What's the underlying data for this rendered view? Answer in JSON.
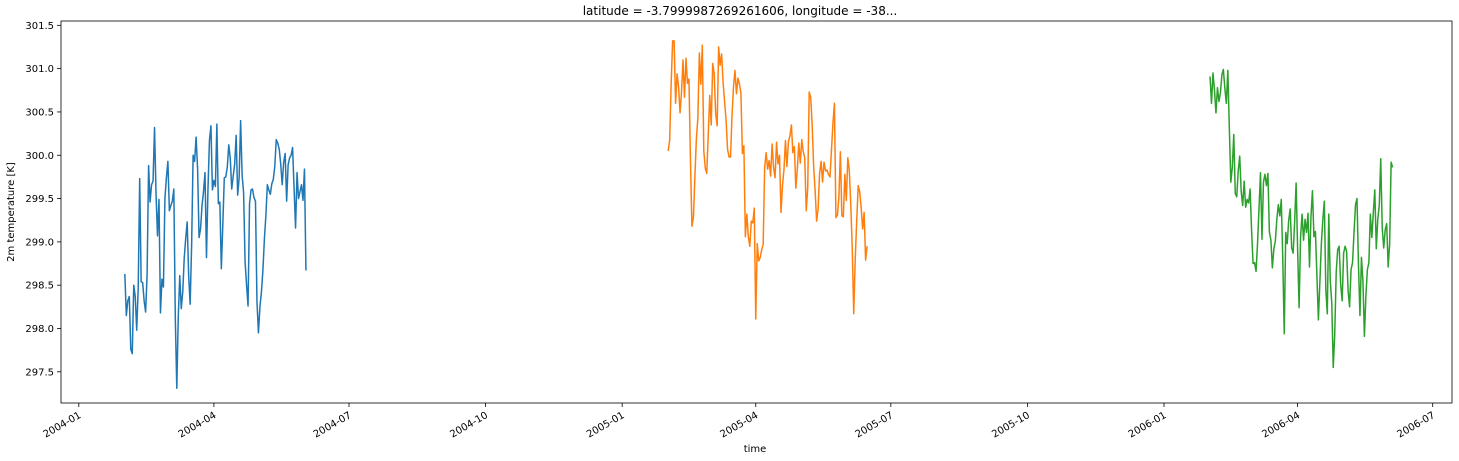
{
  "chart_data": {
    "type": "line",
    "title": "latitude = -3.7999987269261606, longitude = -38...",
    "xlabel": "time",
    "ylabel": "2m temperature [K]",
    "xlim": [
      "2003-12-20",
      "2006-07-14"
    ],
    "ylim": [
      297.14,
      301.55
    ],
    "x_ticks": [
      "2004-01",
      "2004-04",
      "2004-07",
      "2004-10",
      "2005-01",
      "2005-04",
      "2005-07",
      "2005-10",
      "2006-01",
      "2006-04",
      "2006-07"
    ],
    "y_ticks": [
      297.5,
      298.0,
      298.5,
      299.0,
      299.5,
      300.0,
      300.5,
      301.0,
      301.5
    ],
    "grid": false,
    "series": [
      {
        "color": "#1f77b4",
        "start": "2004-02-01",
        "values": [
          298.63,
          298.15,
          298.32,
          298.37,
          297.76,
          297.71,
          298.5,
          298.37,
          297.98,
          298.46,
          299.73,
          298.54,
          298.53,
          298.32,
          298.19,
          298.62,
          299.88,
          299.46,
          299.66,
          299.7,
          300.32,
          299.56,
          299.07,
          299.49,
          298.18,
          298.57,
          298.48,
          299.5,
          299.74,
          299.93,
          299.36,
          299.42,
          299.47,
          299.61,
          298.12,
          297.31,
          298.14,
          298.61,
          298.23,
          298.42,
          298.81,
          299.04,
          299.23,
          298.61,
          298.28,
          298.97,
          300.0,
          299.93,
          300.21,
          299.85,
          299.05,
          299.15,
          299.42,
          299.58,
          299.8,
          298.82,
          299.61,
          300.17,
          300.34,
          299.6,
          299.71,
          299.64,
          300.36,
          299.44,
          299.46,
          298.69,
          299.2,
          299.74,
          299.75,
          299.86,
          300.12,
          299.97,
          299.61,
          299.76,
          299.9,
          300.23,
          299.54,
          299.74,
          300.4,
          299.77,
          299.57,
          298.77,
          298.5,
          298.26,
          299.44,
          299.6,
          299.61,
          299.51,
          299.47,
          298.31,
          297.95,
          298.25,
          298.42,
          298.67,
          299.03,
          299.3,
          299.66,
          299.6,
          299.55,
          299.67,
          299.72,
          299.87,
          300.18,
          300.14,
          300.07,
          299.9,
          299.66,
          299.92,
          300.02,
          299.47,
          299.89,
          299.97,
          300.0,
          300.09,
          299.62,
          299.16,
          299.8,
          299.5,
          299.58,
          299.66,
          299.48,
          299.84,
          298.67
        ]
      },
      {
        "color": "#ff7f0e",
        "start": "2005-02-01",
        "values": [
          300.05,
          300.17,
          300.82,
          301.32,
          301.32,
          300.6,
          300.94,
          300.79,
          300.49,
          300.73,
          301.1,
          300.67,
          301.12,
          300.83,
          300.88,
          299.95,
          299.18,
          299.28,
          299.75,
          300.19,
          300.43,
          301.18,
          300.82,
          301.27,
          300.05,
          299.85,
          299.79,
          300.24,
          300.69,
          300.35,
          301.06,
          300.94,
          300.48,
          300.34,
          301.25,
          301.04,
          301.17,
          300.84,
          300.62,
          300.41,
          300.07,
          299.98,
          299.98,
          300.46,
          300.79,
          300.98,
          300.71,
          300.89,
          300.82,
          300.72,
          300.02,
          300.11,
          299.06,
          299.32,
          299.06,
          298.95,
          299.24,
          299.22,
          299.39,
          298.11,
          298.98,
          298.78,
          298.82,
          298.91,
          298.97,
          299.86,
          300.03,
          299.84,
          299.94,
          299.76,
          300.13,
          299.86,
          299.74,
          300.15,
          299.9,
          300.0,
          299.34,
          299.65,
          299.83,
          300.17,
          299.87,
          300.16,
          300.22,
          300.35,
          300.03,
          300.1,
          299.62,
          299.84,
          300.14,
          299.91,
          300.18,
          300.04,
          299.97,
          299.36,
          299.62,
          300.73,
          300.67,
          300.35,
          299.87,
          299.59,
          299.24,
          299.38,
          299.79,
          299.93,
          299.69,
          299.92,
          299.82,
          299.83,
          299.78,
          299.75,
          300.06,
          300.37,
          300.6,
          299.28,
          299.31,
          299.52,
          300.04,
          299.3,
          299.29,
          299.78,
          299.48,
          299.97,
          299.83,
          299.43,
          298.93,
          298.17,
          298.8,
          299.24,
          299.65,
          299.58,
          299.4,
          299.15,
          299.34,
          298.79,
          298.95
        ]
      },
      {
        "color": "#2ca02c",
        "start": "2006-02-01",
        "values": [
          300.91,
          300.6,
          300.95,
          300.75,
          300.49,
          300.78,
          300.62,
          300.72,
          300.93,
          300.99,
          300.77,
          300.6,
          300.98,
          300.32,
          299.69,
          299.86,
          300.24,
          299.56,
          299.52,
          299.82,
          299.99,
          299.58,
          299.42,
          299.7,
          299.4,
          299.49,
          299.45,
          299.61,
          299.13,
          298.75,
          298.76,
          298.66,
          298.98,
          299.39,
          299.8,
          299.03,
          299.69,
          299.78,
          299.65,
          299.79,
          299.11,
          299.02,
          298.7,
          298.92,
          299.01,
          299.26,
          299.43,
          299.3,
          299.49,
          298.81,
          297.94,
          299.11,
          298.98,
          299.25,
          299.38,
          298.93,
          298.87,
          299.23,
          299.68,
          298.92,
          298.24,
          299.06,
          299.32,
          299.02,
          299.26,
          299.11,
          299.33,
          298.71,
          299.29,
          299.59,
          299.06,
          299.12,
          298.61,
          298.1,
          298.54,
          298.98,
          299.26,
          299.47,
          298.45,
          298.17,
          299.32,
          298.55,
          298.3,
          297.55,
          297.93,
          298.65,
          298.91,
          298.95,
          298.51,
          298.32,
          298.87,
          298.95,
          298.89,
          298.44,
          298.25,
          298.68,
          298.76,
          299.11,
          299.43,
          299.5,
          298.74,
          298.15,
          298.82,
          298.55,
          297.91,
          298.38,
          298.68,
          298.76,
          299.32,
          299.05,
          299.34,
          299.6,
          298.92,
          299.26,
          299.42,
          299.96,
          299.16,
          298.93,
          299.14,
          299.21,
          298.71,
          298.98,
          299.92,
          299.86
        ]
      }
    ]
  }
}
